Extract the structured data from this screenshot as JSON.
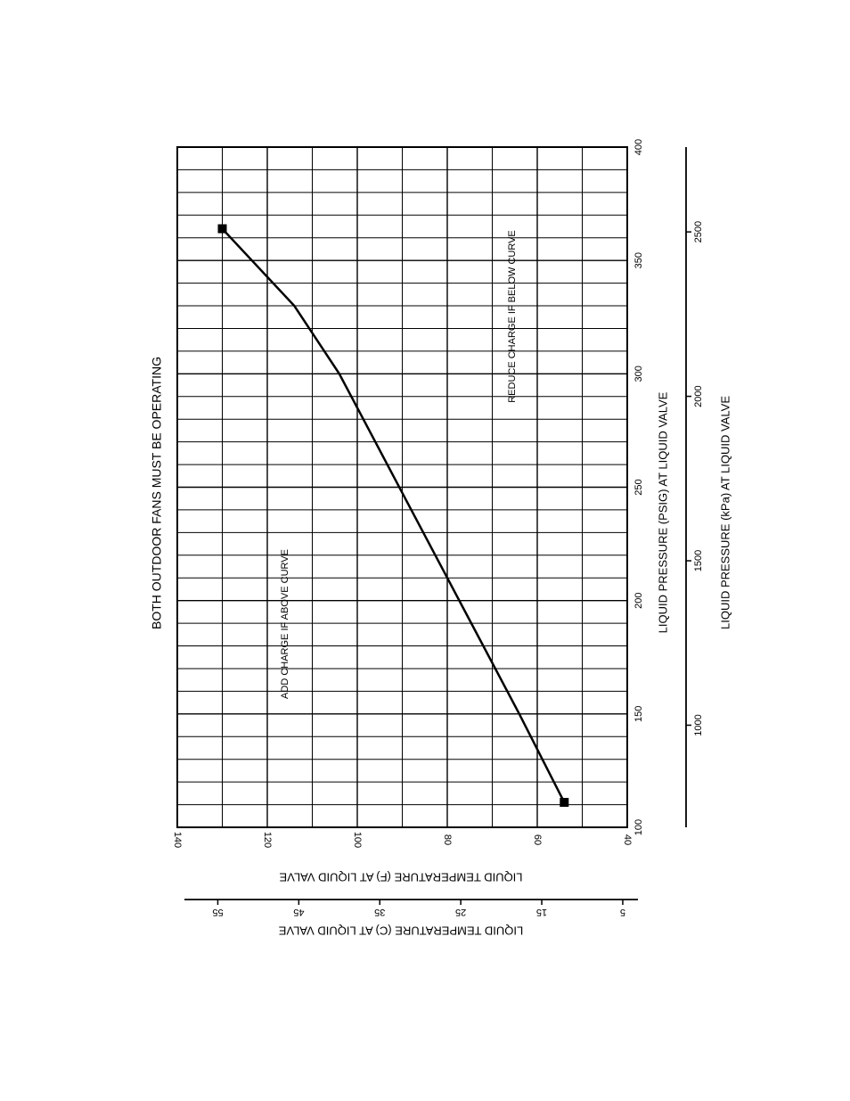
{
  "chart_data": {
    "type": "line",
    "title": "BOTH OUTDOOR FANS MUST BE OPERATING",
    "xlabel": "LIQUID PRESSURE (PSIG) AT LIQUID VALVE",
    "xlabel_secondary": "LIQUID PRESSURE (kPa) AT LIQUID VALVE",
    "ylabel": "LIQUID TEMPERATURE (F) AT LIQUID VALVE",
    "ylabel_secondary": "LIQUID TEMPERATURE (C) AT LIQUID VALVE",
    "xlim": [
      100,
      400
    ],
    "ylim": [
      40,
      140
    ],
    "xticks": [
      100,
      150,
      200,
      250,
      300,
      350,
      400
    ],
    "yticks": [
      40,
      60,
      80,
      100,
      120,
      140
    ],
    "xticks_secondary": [
      1000,
      1500,
      2000,
      2500
    ],
    "yticks_secondary": [
      5,
      15,
      25,
      35,
      45,
      55
    ],
    "grid": true,
    "orientation": "rotated 90 degrees",
    "series": [
      {
        "x": [
          111,
          150,
          180,
          210,
          240,
          270,
          300,
          330,
          364
        ],
        "y": [
          54,
          64,
          72,
          80,
          88,
          96,
          104,
          114,
          130
        ],
        "endpoint_markers": true
      }
    ],
    "annotations": [
      {
        "text": "ADD CHARGE IF ABOVE CURVE"
      },
      {
        "text": "REDUCE CHARGE IF BELOW CURVE"
      }
    ]
  }
}
